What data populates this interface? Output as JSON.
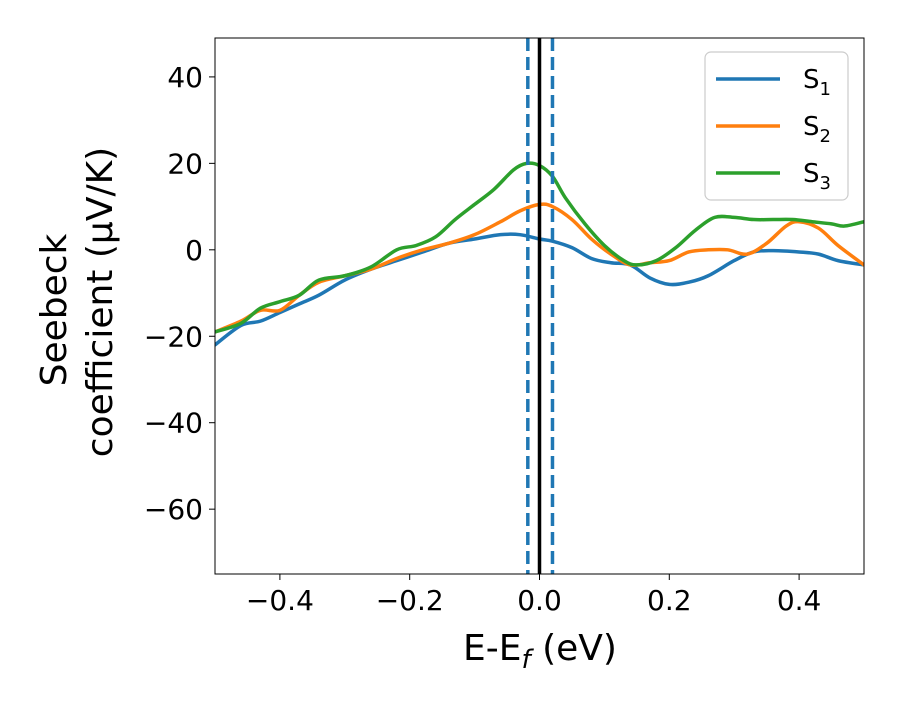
{
  "chart_data": {
    "type": "line",
    "title": "",
    "xlabel": "E-E",
    "xlabel_sub": "f",
    "xlabel_unit": " (eV)",
    "ylabel_line1": "Seebeck",
    "ylabel_line2": "coefficient  (μV/K)",
    "xlim": [
      -0.5,
      0.5
    ],
    "ylim": [
      -75,
      49
    ],
    "xticks": [
      -0.4,
      -0.2,
      0.0,
      0.2,
      0.4
    ],
    "xtick_labels": [
      "−0.4",
      "−0.2",
      "0.0",
      "0.2",
      "0.4"
    ],
    "yticks": [
      40,
      20,
      0,
      -20,
      -40,
      -60
    ],
    "ytick_labels": [
      "40",
      "20",
      "0",
      "−20",
      "−40",
      "−60"
    ],
    "grid": false,
    "legend_position": "top-right",
    "series": [
      {
        "name": "S",
        "sub": "1",
        "color": "#1f77b4",
        "x": [
          -0.5,
          -0.46,
          -0.43,
          -0.4,
          -0.37,
          -0.34,
          -0.3,
          -0.26,
          -0.22,
          -0.18,
          -0.14,
          -0.1,
          -0.06,
          -0.03,
          0.0,
          0.02,
          0.05,
          0.08,
          0.11,
          0.14,
          0.17,
          0.2,
          0.23,
          0.26,
          0.3,
          0.33,
          0.36,
          0.4,
          0.43,
          0.46,
          0.5
        ],
        "y": [
          -22,
          -17.5,
          -16.5,
          -14.5,
          -12.5,
          -10.5,
          -7,
          -4.5,
          -2.5,
          -0.5,
          1.5,
          2.5,
          3.5,
          3.5,
          2.5,
          2.0,
          0.5,
          -2.0,
          -3.0,
          -3.5,
          -6.5,
          -8.0,
          -7.5,
          -6.0,
          -2.5,
          -0.5,
          -0.2,
          -0.5,
          -1.0,
          -2.5,
          -3.5
        ]
      },
      {
        "name": "S",
        "sub": "2",
        "color": "#ff7f0e",
        "x": [
          -0.5,
          -0.46,
          -0.43,
          -0.4,
          -0.37,
          -0.34,
          -0.3,
          -0.26,
          -0.22,
          -0.18,
          -0.14,
          -0.1,
          -0.06,
          -0.03,
          0.0,
          0.02,
          0.05,
          0.08,
          0.11,
          0.14,
          0.17,
          0.2,
          0.23,
          0.26,
          0.29,
          0.32,
          0.35,
          0.38,
          0.4,
          0.43,
          0.46,
          0.5
        ],
        "y": [
          -19,
          -16.5,
          -14,
          -14,
          -10.5,
          -7.5,
          -6.0,
          -4.5,
          -2.0,
          0.0,
          1.5,
          3.5,
          6.5,
          9.0,
          10.5,
          10.0,
          7.0,
          2.5,
          -1.0,
          -3.5,
          -3.0,
          -2.5,
          -0.5,
          0.0,
          0.0,
          -1.0,
          1.5,
          5.5,
          6.5,
          5.0,
          1.0,
          -3.5
        ]
      },
      {
        "name": "S",
        "sub": "3",
        "color": "#2ca02c",
        "x": [
          -0.5,
          -0.46,
          -0.43,
          -0.4,
          -0.37,
          -0.34,
          -0.3,
          -0.26,
          -0.22,
          -0.19,
          -0.16,
          -0.13,
          -0.1,
          -0.07,
          -0.04,
          -0.02,
          0.0,
          0.02,
          0.04,
          0.07,
          0.1,
          0.13,
          0.15,
          0.18,
          0.21,
          0.24,
          0.27,
          0.3,
          0.33,
          0.36,
          0.39,
          0.42,
          0.45,
          0.47,
          0.5
        ],
        "y": [
          -19,
          -17,
          -13.5,
          -12,
          -10.5,
          -7.0,
          -6.0,
          -4.0,
          0.0,
          1.0,
          3.0,
          7.0,
          10.5,
          14.0,
          18.5,
          20.0,
          19.5,
          17.0,
          12.0,
          6.0,
          1.0,
          -2.5,
          -3.5,
          -2.5,
          0.5,
          4.5,
          7.5,
          7.5,
          7.0,
          7.0,
          7.0,
          6.5,
          6.0,
          5.5,
          6.5
        ]
      }
    ],
    "vlines": [
      {
        "x": -0.018,
        "color": "#1f77b4",
        "style": "dashed"
      },
      {
        "x": 0.0,
        "color": "#000000",
        "style": "solid"
      },
      {
        "x": 0.02,
        "color": "#1f77b4",
        "style": "dashed"
      }
    ]
  }
}
